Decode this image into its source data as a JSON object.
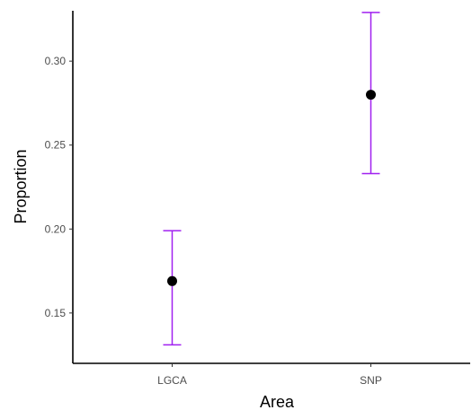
{
  "chart_data": {
    "type": "scatter",
    "title": "",
    "xlabel": "Area",
    "ylabel": "Proportion",
    "categories": [
      "LGCA",
      "SNP"
    ],
    "points": [
      {
        "category": "LGCA",
        "value": 0.169,
        "lower": 0.131,
        "upper": 0.199
      },
      {
        "category": "SNP",
        "value": 0.28,
        "lower": 0.233,
        "upper": 0.329
      }
    ],
    "ylim": [
      0.12,
      0.33
    ],
    "yticks": [
      0.15,
      0.2,
      0.25,
      0.3
    ],
    "ytick_labels": [
      "0.15",
      "0.20",
      "0.25",
      "0.30"
    ],
    "grid": false,
    "legend": "none",
    "colors": {
      "point": "#000000",
      "errorbar": "#a020f0",
      "axis": "#000000"
    }
  }
}
